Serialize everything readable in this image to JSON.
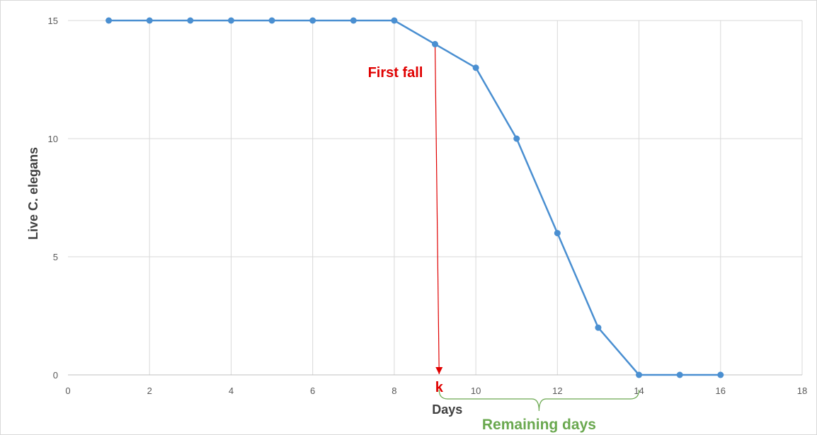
{
  "chart_data": {
    "type": "line",
    "xlabel": "Days",
    "ylabel": "Live C. elegans",
    "xlim": [
      0,
      18
    ],
    "ylim": [
      0,
      15
    ],
    "x_ticks": [
      0,
      2,
      4,
      6,
      8,
      10,
      12,
      14,
      16,
      18
    ],
    "y_ticks": [
      0,
      5,
      10,
      15
    ],
    "grid": true,
    "series_color": "#4a8fd1",
    "series": [
      {
        "x": [
          1,
          2,
          3,
          4,
          5,
          6,
          7,
          8,
          9,
          10,
          11,
          12,
          13,
          14,
          15,
          16
        ],
        "values": [
          15,
          15,
          15,
          15,
          15,
          15,
          15,
          15,
          14,
          13,
          10,
          6,
          2,
          0,
          0,
          0
        ]
      }
    ],
    "annotations": {
      "first_fall": {
        "text": "First fall",
        "at_x": 9,
        "color": "#e00000"
      },
      "k": {
        "text": "k",
        "at_x": 9.1,
        "color": "#e00000"
      },
      "remaining_days": {
        "text": "Remaining days",
        "from_x": 9.1,
        "to_x": 14,
        "color": "#6aa84f"
      }
    }
  }
}
